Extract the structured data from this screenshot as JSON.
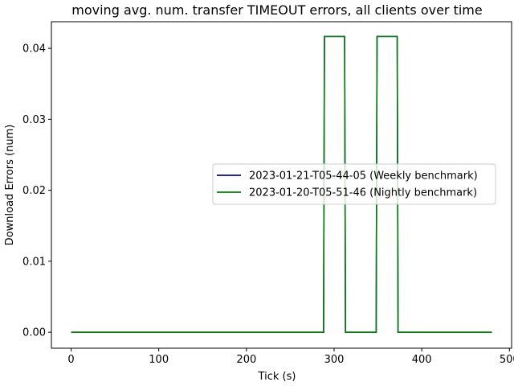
{
  "chart_data": {
    "type": "line",
    "title": "moving avg. num. transfer TIMEOUT errors, all clients over time",
    "xlabel": "Tick (s)",
    "ylabel": "Download Errors (num)",
    "xlim": [
      -22.5,
      502.5
    ],
    "ylim": [
      -0.00225,
      0.04375
    ],
    "xticks": [
      0,
      100,
      200,
      300,
      400,
      500
    ],
    "yticks": [
      0.0,
      0.01,
      0.02,
      0.03,
      0.04
    ],
    "xtick_labels": [
      "0",
      "100",
      "200",
      "300",
      "400",
      "500"
    ],
    "ytick_labels": [
      "0.00",
      "0.01",
      "0.02",
      "0.03",
      "0.04"
    ],
    "grid": false,
    "legend_position": "center-right",
    "series": [
      {
        "name": "2023-01-21-T05-44-05 (Weekly benchmark)",
        "color": "#0000cc",
        "points": [
          [
            0,
            0
          ],
          [
            288,
            0
          ],
          [
            289,
            0.041667
          ],
          [
            312,
            0.041667
          ],
          [
            313,
            0
          ],
          [
            348,
            0
          ],
          [
            349,
            0.041667
          ],
          [
            372,
            0.041667
          ],
          [
            373,
            0
          ],
          [
            480,
            0
          ]
        ]
      },
      {
        "name": "2023-01-20-T05-51-46 (Nightly benchmark)",
        "color": "#008000",
        "points": [
          [
            0,
            0
          ],
          [
            288,
            0
          ],
          [
            289,
            0.041667
          ],
          [
            312,
            0.041667
          ],
          [
            313,
            0
          ],
          [
            348,
            0
          ],
          [
            349,
            0.041667
          ],
          [
            372,
            0.041667
          ],
          [
            373,
            0
          ],
          [
            480,
            0
          ]
        ]
      }
    ]
  }
}
